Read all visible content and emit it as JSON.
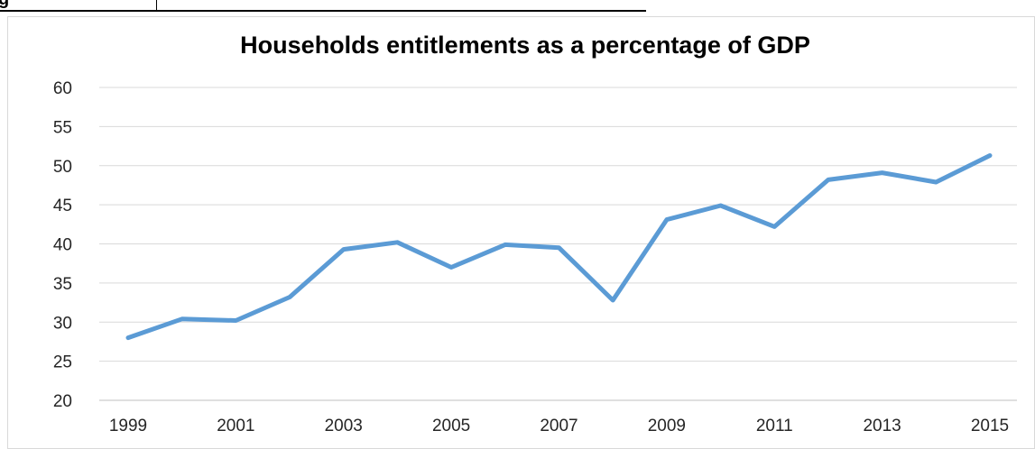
{
  "page": {
    "fragment_text": "g"
  },
  "chart_data": {
    "type": "line",
    "title": "Households entitlements as a percentage of GDP",
    "xlabel": "",
    "ylabel": "",
    "x": [
      1999,
      2000,
      2001,
      2002,
      2003,
      2004,
      2005,
      2006,
      2007,
      2008,
      2009,
      2010,
      2011,
      2012,
      2013,
      2014,
      2015
    ],
    "x_tick_labels": [
      "1999",
      "2001",
      "2003",
      "2005",
      "2007",
      "2009",
      "2011",
      "2013",
      "2015"
    ],
    "y_tick_labels": [
      "20",
      "25",
      "30",
      "35",
      "40",
      "45",
      "50",
      "55",
      "60"
    ],
    "ylim": [
      20,
      60
    ],
    "grid": true,
    "legend": "none",
    "series": [
      {
        "color": "#5b9bd5",
        "values": [
          28.0,
          30.4,
          30.2,
          33.2,
          39.3,
          40.2,
          37.0,
          39.9,
          39.5,
          32.8,
          43.1,
          44.9,
          42.2,
          48.2,
          49.1,
          47.9,
          51.3
        ]
      }
    ],
    "colors": {
      "line": "#5b9bd5",
      "grid": "#d9d9d9",
      "axis": "#bfbfbf",
      "text": "#262626"
    }
  }
}
